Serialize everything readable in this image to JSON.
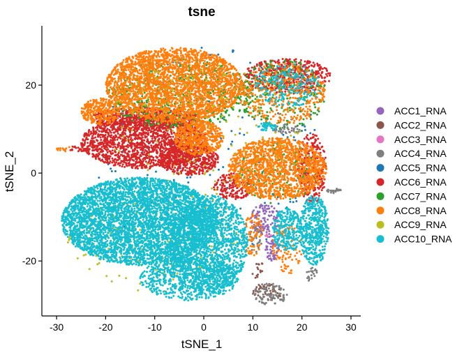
{
  "chart_data": {
    "type": "scatter",
    "title": "tsne",
    "xlabel": "tSNE_1",
    "ylabel": "tSNE_2",
    "xlim": [
      -33,
      32
    ],
    "ylim": [
      -32.5,
      33.5
    ],
    "xticks": [
      -30,
      -20,
      -10,
      0,
      10,
      20,
      30
    ],
    "yticks": [
      -20,
      0,
      20
    ],
    "grid": false,
    "legend_position": "right",
    "series": [
      {
        "name": "ACC1_RNA",
        "color": "#9467bd",
        "regions": [
          {
            "cx": 12.5,
            "cy": -10.5,
            "rx": 3,
            "ry": 3.5,
            "n": 120
          },
          {
            "cx": 14,
            "cy": -17,
            "rx": 1.5,
            "ry": 3,
            "n": 60
          }
        ]
      },
      {
        "name": "ACC2_RNA",
        "color": "#8c564b",
        "regions": [
          {
            "cx": 13,
            "cy": -27,
            "rx": 3,
            "ry": 2,
            "n": 40
          },
          {
            "cx": 11,
            "cy": -22,
            "rx": 1.5,
            "ry": 2,
            "n": 15
          }
        ]
      },
      {
        "name": "ACC3_RNA",
        "color": "#e377c2",
        "regions": [
          {
            "cx": 13,
            "cy": -14,
            "rx": 1,
            "ry": 1,
            "n": 5
          }
        ]
      },
      {
        "name": "ACC4_RNA",
        "color": "#7f7f7f",
        "regions": [
          {
            "cx": 13.5,
            "cy": -27.5,
            "rx": 3.5,
            "ry": 2.5,
            "n": 90
          },
          {
            "cx": 17,
            "cy": 10,
            "rx": 3,
            "ry": 1.2,
            "n": 40
          },
          {
            "cx": 26.5,
            "cy": -4,
            "rx": 1.5,
            "ry": 0.6,
            "n": 25
          },
          {
            "cx": 10.5,
            "cy": -15,
            "rx": 1.5,
            "ry": 3,
            "n": 30
          },
          {
            "cx": 22,
            "cy": -23,
            "rx": 1.2,
            "ry": 1.8,
            "n": 20
          }
        ]
      },
      {
        "name": "ACC5_RNA",
        "color": "#1f77b4",
        "regions": [
          {
            "cx": 0,
            "cy": 5,
            "rx": 24,
            "ry": 24,
            "n": 200
          }
        ]
      },
      {
        "name": "ACC6_RNA",
        "color": "#d62728",
        "regions": [
          {
            "cx": -12,
            "cy": 7,
            "rx": 13,
            "ry": 6,
            "n": 1800
          },
          {
            "cx": -3,
            "cy": 3,
            "rx": 6,
            "ry": 3.5,
            "n": 500
          },
          {
            "cx": 17,
            "cy": 22,
            "rx": 9,
            "ry": 4,
            "n": 500
          },
          {
            "cx": 22,
            "cy": 1,
            "rx": 3,
            "ry": 8,
            "n": 300
          },
          {
            "cx": 6,
            "cy": -3,
            "rx": 4,
            "ry": 3,
            "n": 200
          },
          {
            "cx": -12,
            "cy": 12.5,
            "rx": 11,
            "ry": 2.5,
            "n": 500
          },
          {
            "cx": -25.5,
            "cy": 5.5,
            "rx": 2,
            "ry": 0.7,
            "n": 20
          }
        ]
      },
      {
        "name": "ACC7_RNA",
        "color": "#2ca02c",
        "regions": [
          {
            "cx": -5,
            "cy": 18,
            "rx": 15,
            "ry": 8,
            "n": 600
          },
          {
            "cx": 16,
            "cy": 18,
            "rx": 9,
            "ry": 8,
            "n": 250
          },
          {
            "cx": 15,
            "cy": 0,
            "rx": 8,
            "ry": 7,
            "n": 150
          }
        ]
      },
      {
        "name": "ACC8_RNA",
        "color": "#ff7f0e",
        "regions": [
          {
            "cx": -6,
            "cy": 20,
            "rx": 14,
            "ry": 8.5,
            "n": 2800
          },
          {
            "cx": 15,
            "cy": 1,
            "rx": 10,
            "ry": 7,
            "n": 1500
          },
          {
            "cx": 16,
            "cy": 18,
            "rx": 9,
            "ry": 7,
            "n": 400
          },
          {
            "cx": -21,
            "cy": 14,
            "rx": 4,
            "ry": 3,
            "n": 300
          },
          {
            "cx": -1,
            "cy": 8,
            "rx": 5,
            "ry": 4,
            "n": 500
          },
          {
            "cx": 10,
            "cy": -14,
            "rx": 2,
            "ry": 5,
            "n": 80
          },
          {
            "cx": 17,
            "cy": -17,
            "rx": 3,
            "ry": 6,
            "n": 100
          },
          {
            "cx": -28.5,
            "cy": 5.5,
            "rx": 1.5,
            "ry": 0.6,
            "n": 15
          }
        ]
      },
      {
        "name": "ACC9_RNA",
        "color": "#bcbd22",
        "regions": [
          {
            "cx": -10,
            "cy": -15,
            "rx": 18,
            "ry": 12,
            "n": 200
          },
          {
            "cx": 0,
            "cy": 10,
            "rx": 20,
            "ry": 15,
            "n": 150
          }
        ]
      },
      {
        "name": "ACC10_RNA",
        "color": "#17becf",
        "regions": [
          {
            "cx": -13,
            "cy": -11,
            "rx": 16,
            "ry": 10,
            "n": 4500
          },
          {
            "cx": 1,
            "cy": -16,
            "rx": 8,
            "ry": 11,
            "n": 1500
          },
          {
            "cx": -3,
            "cy": -24,
            "rx": 10,
            "ry": 5,
            "n": 700
          },
          {
            "cx": 22.5,
            "cy": -13,
            "rx": 3,
            "ry": 8,
            "n": 500
          },
          {
            "cx": 17,
            "cy": -13,
            "rx": 3,
            "ry": 5,
            "n": 250
          },
          {
            "cx": 13,
            "cy": 10.5,
            "rx": 2,
            "ry": 1,
            "n": 50
          },
          {
            "cx": 17,
            "cy": 20,
            "rx": 7,
            "ry": 5,
            "n": 200
          }
        ]
      }
    ]
  }
}
